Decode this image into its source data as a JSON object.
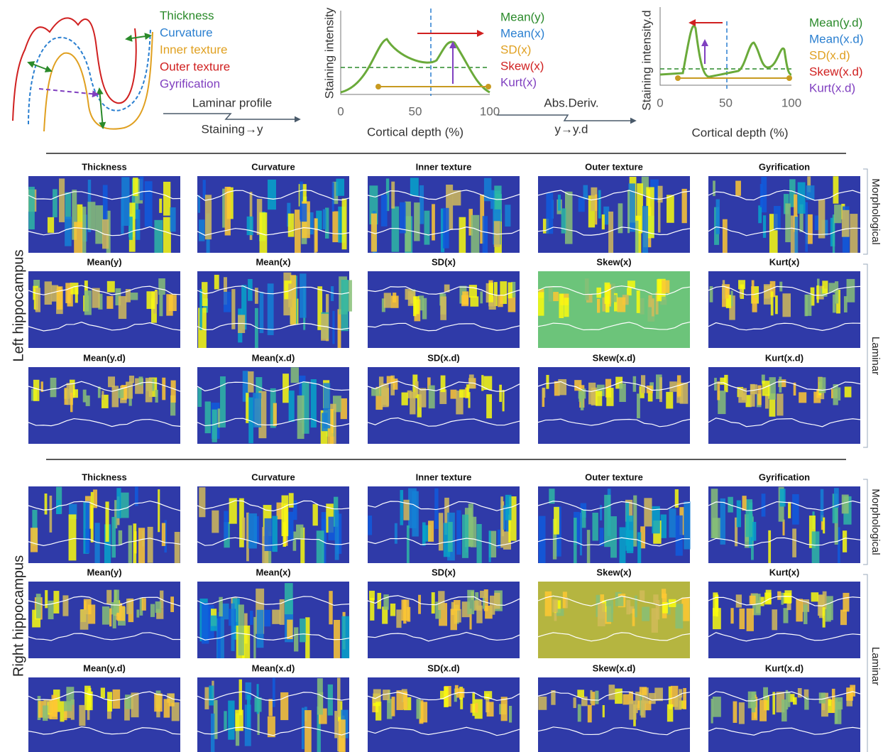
{
  "schematic": {
    "legend": [
      "Thickness",
      "Curvature",
      "Inner texture",
      "Outer texture",
      "Gyrification"
    ],
    "arrow_top": "Laminar profile",
    "arrow_bottom": "Staining→y"
  },
  "profile": {
    "ylabel": "Staining intensity",
    "xlabel": "Cortical depth (%)",
    "xticks": [
      0,
      50,
      100
    ],
    "legend": [
      "Mean(y)",
      "Mean(x)",
      "SD(x)",
      "Skew(x)",
      "Kurt(x)"
    ]
  },
  "deriv_arrow": {
    "top": "Abs.Deriv.",
    "bottom": "y→y.d"
  },
  "derivative_profile": {
    "ylabel": "Staining intensity.d",
    "xlabel": "Cortical depth (%)",
    "xticks": [
      0,
      50,
      100
    ],
    "legend": [
      "Mean(y.d)",
      "Mean(x.d)",
      "SD(x.d)",
      "Skew(x.d)",
      "Kurt(x.d)"
    ]
  },
  "hemispheres": [
    {
      "label": "Left hippocampus",
      "groups": [
        "Morphological",
        "Laminar"
      ],
      "rows": [
        [
          "Thickness",
          "Curvature",
          "Inner texture",
          "Outer texture",
          "Gyrification"
        ],
        [
          "Mean(y)",
          "Mean(x)",
          "SD(x)",
          "Skew(x)",
          "Kurt(x)"
        ],
        [
          "Mean(y.d)",
          "Mean(x.d)",
          "SD(x.d)",
          "Skew(x.d)",
          "Kurt(x.d)"
        ]
      ]
    },
    {
      "label": "Right hippocampus",
      "groups": [
        "Morphological",
        "Laminar"
      ],
      "rows": [
        [
          "Thickness",
          "Curvature",
          "Inner texture",
          "Outer texture",
          "Gyrification"
        ],
        [
          "Mean(y)",
          "Mean(x)",
          "SD(x)",
          "Skew(x)",
          "Kurt(x)"
        ],
        [
          "Mean(y.d)",
          "Mean(x.d)",
          "SD(x.d)",
          "Skew(x.d)",
          "Kurt(x.d)"
        ]
      ]
    }
  ]
}
